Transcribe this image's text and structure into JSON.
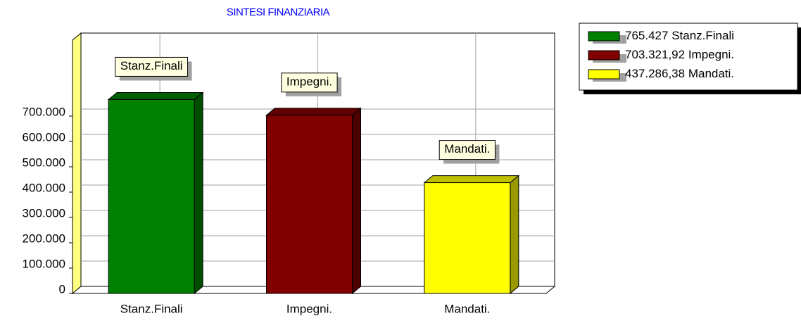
{
  "chart_data": {
    "type": "bar",
    "title": "SINTESI FINANZIARIA",
    "categories": [
      "Stanz.Finali",
      "Impegni.",
      "Mandati."
    ],
    "values": [
      765427,
      703321.92,
      437286.38
    ],
    "value_labels": [
      "765.427",
      "703.321,92",
      "437.286,38"
    ],
    "colors": [
      "#008000",
      "#800000",
      "#ffff00"
    ],
    "ylim": [
      0,
      1000000
    ],
    "yticks": [
      0,
      {
        "value": 100000,
        "label": "100.000"
      },
      {
        "value": 200000,
        "label": "200.000"
      },
      {
        "value": 300000,
        "label": "300.000"
      },
      {
        "value": 400000,
        "label": "400.000"
      },
      {
        "value": 500000,
        "label": "500.000"
      },
      {
        "value": 600000,
        "label": "600.000"
      },
      {
        "value": 700000,
        "label": "700.000"
      }
    ],
    "grid": true,
    "legend": "top-right"
  }
}
